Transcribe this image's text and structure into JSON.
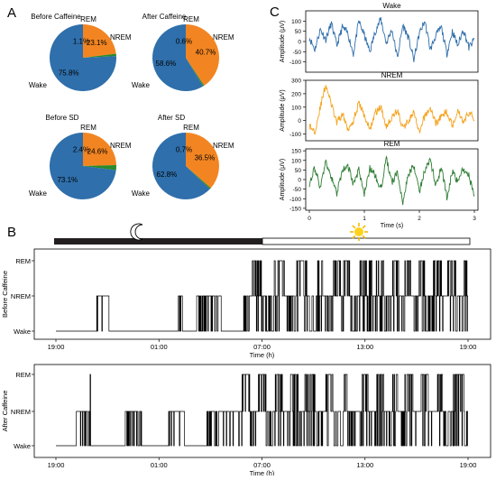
{
  "panels": {
    "A": "A",
    "B": "B",
    "C": "C"
  },
  "colors": {
    "wake": "#2f6fab",
    "nrem": "#f28522",
    "rem": "#2a8a2a",
    "night": "#231f20",
    "sun": "#ffd21c",
    "trace_nrem": "#f5a21c",
    "trace_rem": "#2e7d32"
  },
  "chart_data": [
    {
      "type": "pie",
      "title": "Before Caffeine",
      "labels": [
        "Wake",
        "NREM",
        "REM"
      ],
      "values": [
        75.8,
        23.1,
        1.1
      ],
      "value_labels": [
        "75.8%",
        "23.1%",
        "1.1%"
      ]
    },
    {
      "type": "pie",
      "title": "After Caffeine",
      "labels": [
        "Wake",
        "NREM",
        "REM"
      ],
      "values": [
        58.6,
        40.7,
        0.6
      ],
      "value_labels": [
        "58.6%",
        "40.7%",
        "0.6%"
      ]
    },
    {
      "type": "pie",
      "title": "Before SD",
      "labels": [
        "Wake",
        "NREM",
        "REM"
      ],
      "values": [
        73.1,
        24.6,
        2.4
      ],
      "value_labels": [
        "73.1%",
        "24.6%",
        "2.4%"
      ]
    },
    {
      "type": "pie",
      "title": "After SD",
      "labels": [
        "Wake",
        "NREM",
        "REM"
      ],
      "values": [
        62.8,
        36.5,
        0.7
      ],
      "value_labels": [
        "62.8%",
        "36.5%",
        "0.7%"
      ]
    },
    {
      "type": "line",
      "title": "Wake",
      "ylabel": "Amplitude (μV)",
      "ylim": [
        -150,
        150
      ],
      "yticks": [
        "100",
        "50",
        "0",
        "-50",
        "-100"
      ],
      "xlim": [
        0,
        3
      ],
      "xticks": [
        "0",
        "1",
        "2",
        "3"
      ],
      "x": [
        0,
        0.1,
        0.2,
        0.3,
        0.4,
        0.5,
        0.6,
        0.7,
        0.8,
        0.9,
        1.0,
        1.1,
        1.2,
        1.3,
        1.4,
        1.5,
        1.6,
        1.7,
        1.8,
        1.9,
        2.0,
        2.1,
        2.2,
        2.3,
        2.4,
        2.5,
        2.6,
        2.7,
        2.8,
        2.9,
        3.0
      ],
      "y": [
        20,
        -40,
        60,
        10,
        90,
        -20,
        70,
        40,
        -60,
        100,
        30,
        -50,
        50,
        110,
        -10,
        60,
        -80,
        80,
        20,
        -90,
        40,
        100,
        -40,
        30,
        70,
        -60,
        50,
        -20,
        60,
        -30,
        10
      ]
    },
    {
      "type": "line",
      "title": "NREM",
      "ylabel": "Amplitude (μV)",
      "ylim": [
        -150,
        300
      ],
      "yticks": [
        "300",
        "200",
        "100",
        "0",
        "-100"
      ],
      "xlim": [
        0,
        3
      ],
      "xticks": [
        "0",
        "1",
        "2",
        "3"
      ],
      "x": [
        0,
        0.1,
        0.2,
        0.3,
        0.4,
        0.5,
        0.6,
        0.7,
        0.8,
        0.9,
        1.0,
        1.1,
        1.2,
        1.3,
        1.4,
        1.5,
        1.6,
        1.7,
        1.8,
        1.9,
        2.0,
        2.1,
        2.2,
        2.3,
        2.4,
        2.5,
        2.6,
        2.7,
        2.8,
        2.9,
        3.0
      ],
      "y": [
        -40,
        -80,
        100,
        270,
        120,
        -20,
        50,
        -60,
        0,
        130,
        40,
        -70,
        60,
        100,
        -40,
        20,
        80,
        -60,
        0,
        60,
        -100,
        40,
        90,
        -20,
        30,
        70,
        -40,
        80,
        -10,
        60,
        20
      ]
    },
    {
      "type": "line",
      "title": "REM",
      "ylabel": "Amplitude (μV)",
      "ylim": [
        -160,
        160
      ],
      "yticks": [
        "150",
        "100",
        "50",
        "0",
        "-50",
        "-100",
        "-150"
      ],
      "xlim": [
        0,
        3
      ],
      "xticks": [
        "0",
        "1",
        "2",
        "3"
      ],
      "xlabel": "Time (s)",
      "x": [
        0,
        0.1,
        0.2,
        0.3,
        0.4,
        0.5,
        0.6,
        0.7,
        0.8,
        0.9,
        1.0,
        1.1,
        1.2,
        1.3,
        1.4,
        1.5,
        1.6,
        1.7,
        1.8,
        1.9,
        2.0,
        2.1,
        2.2,
        2.3,
        2.4,
        2.5,
        2.6,
        2.7,
        2.8,
        2.9,
        3.0
      ],
      "y": [
        -20,
        60,
        -40,
        90,
        10,
        -70,
        40,
        80,
        -30,
        50,
        -80,
        60,
        20,
        -50,
        110,
        -20,
        40,
        -120,
        30,
        70,
        -60,
        50,
        100,
        -30,
        60,
        -90,
        40,
        -10,
        60,
        20,
        -90
      ]
    },
    {
      "type": "hypnogram",
      "ylabel": "Before Caffeine",
      "xlabel": "Time (h)",
      "ytick_labels": [
        "Wake",
        "NREM",
        "REM"
      ],
      "xticks": [
        "19:00",
        "01:00",
        "07:00",
        "13:00",
        "19:00"
      ],
      "x_range_hours": [
        0,
        24
      ],
      "stages": "0000000000000000000011111100000000000000000000000000000000001100000001111111111110000000000011112222221111122222111111222221111222211111222212221111122222211222211112221112221111222111122221112222111122"
    },
    {
      "type": "hypnogram",
      "ylabel": "After Caffeine",
      "xlabel": "Time (h)",
      "ytick_labels": [
        "Wake",
        "NREM",
        "REM"
      ],
      "xticks": [
        "19:00",
        "01:00",
        "07:00",
        "13:00",
        "19:00"
      ],
      "x_range_hours": [
        0,
        24
      ],
      "stages": "0000000000111111200000000000000000111111110000000000000111111110000000000011111111111111111222211112222111122221111222211122222111112222111112221111122221111222211112221112222111122221111222111122222211"
    }
  ]
}
